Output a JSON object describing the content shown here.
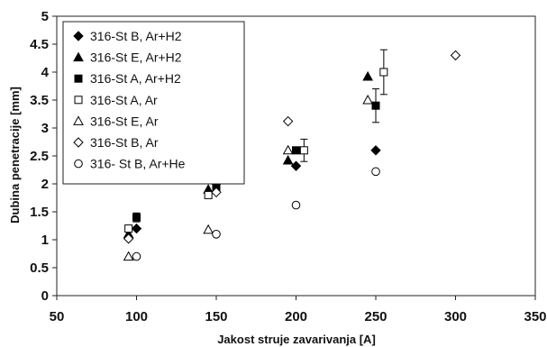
{
  "chart_data": {
    "type": "scatter",
    "xlabel": "Jakost struje zavarivanja [A]",
    "ylabel": "Dubina penetracije [mm]",
    "xlim": [
      50,
      350
    ],
    "ylim": [
      0,
      5
    ],
    "xticks": [
      "50",
      "100",
      "150",
      "200",
      "250",
      "300",
      "350"
    ],
    "yticks": [
      "0",
      "0.5",
      "1",
      "1.5",
      "2",
      "2.5",
      "3",
      "3.5",
      "4",
      "4.5",
      "5"
    ],
    "grid": false,
    "legend_position": "top-left",
    "series": [
      {
        "name": "316-St B, Ar+H2",
        "marker": "diamond-filled",
        "points": [
          {
            "x": 100,
            "y": 1.2
          },
          {
            "x": 150,
            "y": 2.0
          },
          {
            "x": 200,
            "y": 2.32
          },
          {
            "x": 250,
            "y": 2.6
          }
        ]
      },
      {
        "name": "316-St E, Ar+H2",
        "marker": "triangle-filled",
        "points": [
          {
            "x": 95,
            "y": 1.1
          },
          {
            "x": 145,
            "y": 1.9
          },
          {
            "x": 195,
            "y": 2.42
          },
          {
            "x": 245,
            "y": 3.92
          }
        ]
      },
      {
        "name": "316-St A, Ar+H2",
        "marker": "square-filled",
        "points": [
          {
            "x": 100,
            "y": 1.4,
            "err": 0.08
          },
          {
            "x": 150,
            "y": 1.92
          },
          {
            "x": 200,
            "y": 2.6
          },
          {
            "x": 250,
            "y": 3.4,
            "err": 0.3
          }
        ]
      },
      {
        "name": "316-St A, Ar",
        "marker": "square-open",
        "points": [
          {
            "x": 95,
            "y": 1.2
          },
          {
            "x": 145,
            "y": 1.8
          },
          {
            "x": 205,
            "y": 2.6,
            "err": 0.2
          },
          {
            "x": 255,
            "y": 4.0,
            "err": 0.4
          }
        ]
      },
      {
        "name": "316-St E, Ar",
        "marker": "triangle-open",
        "points": [
          {
            "x": 95,
            "y": 0.7
          },
          {
            "x": 145,
            "y": 1.18
          },
          {
            "x": 195,
            "y": 2.6
          },
          {
            "x": 245,
            "y": 3.5
          }
        ]
      },
      {
        "name": "316-St B, Ar",
        "marker": "diamond-open",
        "points": [
          {
            "x": 95,
            "y": 1.02
          },
          {
            "x": 150,
            "y": 1.85
          },
          {
            "x": 195,
            "y": 3.12
          },
          {
            "x": 300,
            "y": 4.3
          }
        ]
      },
      {
        "name": "316- St B, Ar+He",
        "marker": "circle-open",
        "points": [
          {
            "x": 100,
            "y": 0.7
          },
          {
            "x": 150,
            "y": 1.1
          },
          {
            "x": 200,
            "y": 1.62
          },
          {
            "x": 250,
            "y": 2.22
          }
        ]
      }
    ]
  }
}
